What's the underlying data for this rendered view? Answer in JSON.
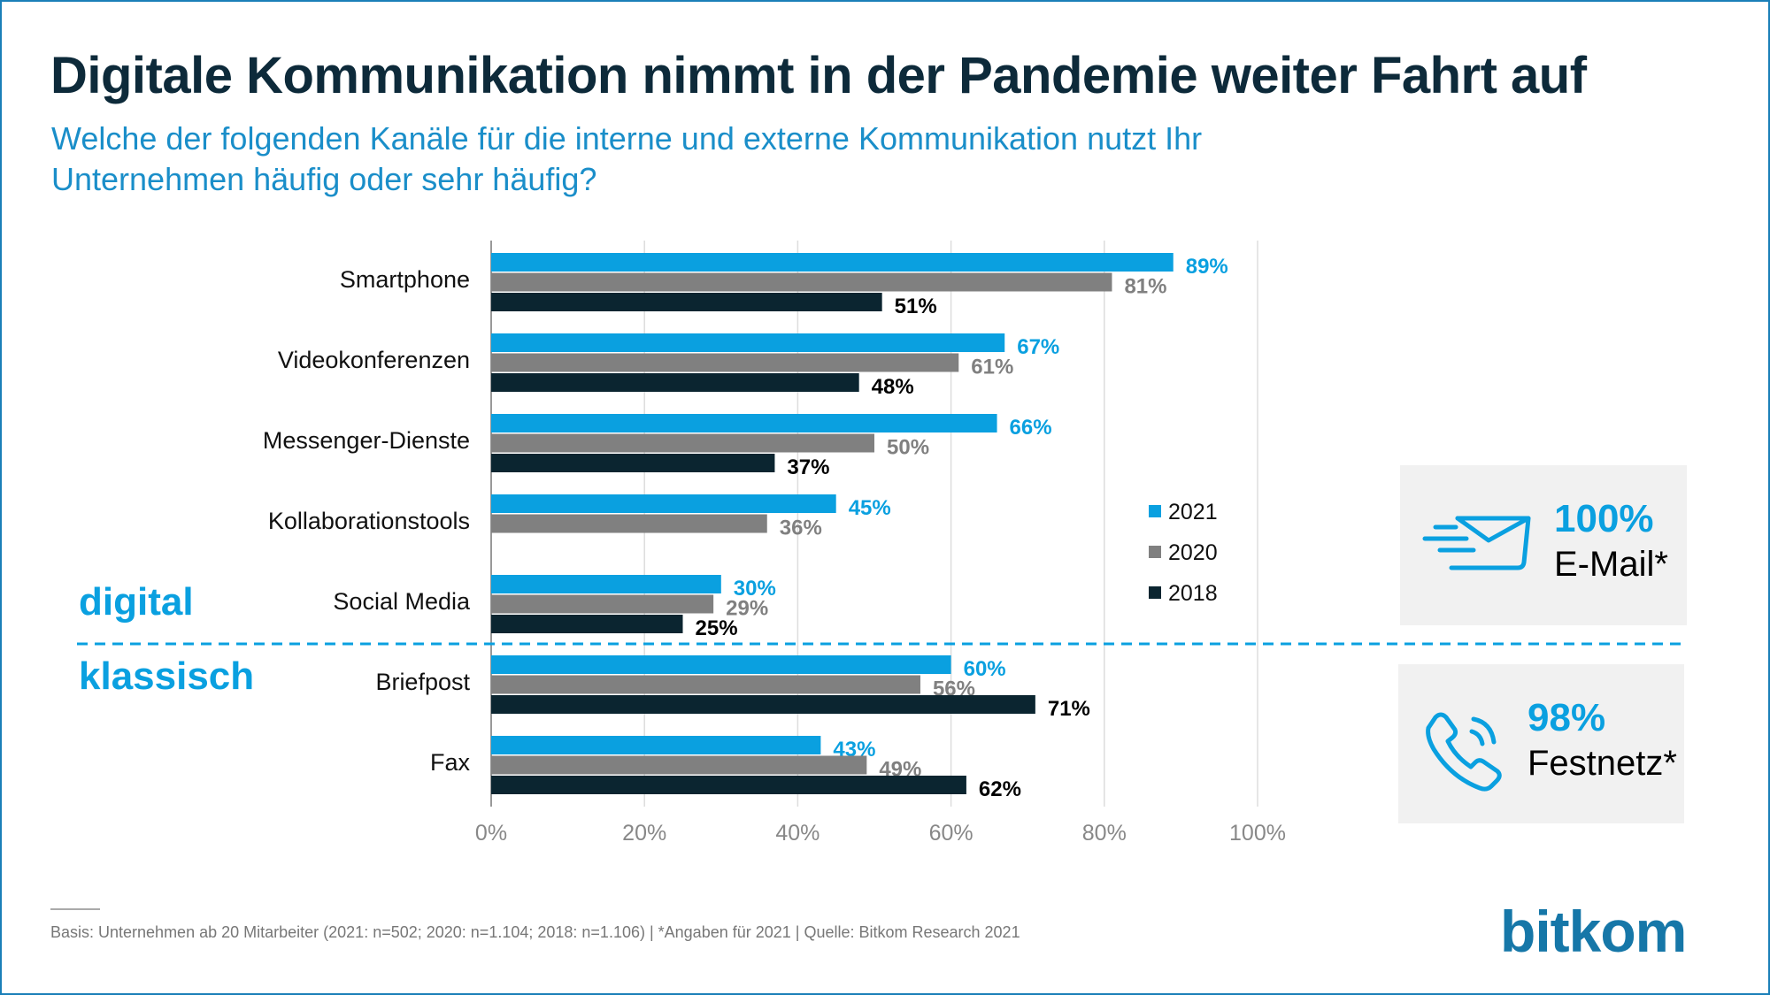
{
  "title": "Digitale Kommunikation nimmt in der Pandemie weiter Fahrt auf",
  "subtitle": "Welche der folgenden Kanäle für die interne und externe Kommunikation nutzt Ihr Unternehmen häufig oder sehr häufig?",
  "sections": {
    "digital": "digital",
    "classic": "klassisch"
  },
  "highlights": [
    {
      "value": "100%",
      "label": "E-Mail*",
      "icon": "envelope-icon"
    },
    {
      "value": "98%",
      "label": "Festnetz*",
      "icon": "phone-icon"
    }
  ],
  "footnote": "Basis: Unternehmen ab 20 Mitarbeiter (2021: n=502; 2020: n=1.104; 2018: n=1.106) | *Angaben für 2021 | Quelle: Bitkom Research 2021",
  "logo": "bitkom",
  "colors": {
    "2021": "#0aa0e0",
    "2020": "#808080",
    "2018": "#0b2530",
    "accent": "#0aa0e0"
  },
  "chart_data": {
    "type": "bar",
    "orientation": "horizontal",
    "categories": [
      "Smartphone",
      "Videokonferenzen",
      "Messenger-Dienste",
      "Kollaborationstools",
      "Social Media",
      "Briefpost",
      "Fax"
    ],
    "series": [
      {
        "name": "2021",
        "values": [
          89,
          67,
          66,
          45,
          30,
          60,
          43
        ]
      },
      {
        "name": "2020",
        "values": [
          81,
          61,
          50,
          36,
          29,
          56,
          49
        ]
      },
      {
        "name": "2018",
        "values": [
          51,
          48,
          37,
          null,
          25,
          71,
          62
        ]
      }
    ],
    "xlim": [
      0,
      100
    ],
    "xticks": [
      "0%",
      "20%",
      "40%",
      "60%",
      "80%",
      "100%"
    ],
    "grid": true,
    "legend": "right",
    "data_label_suffix": "%"
  }
}
